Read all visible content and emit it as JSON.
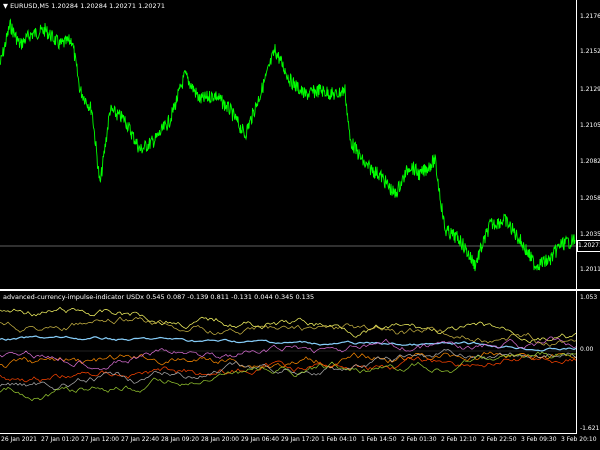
{
  "main_header": {
    "symbol": "EURUSD,M5",
    "ohlc": "1.20284 1.20284 1.20271 1.20271"
  },
  "current_price": "1.20271",
  "price_axis": [
    "1.21760",
    "1.21525",
    "1.21290",
    "1.21055",
    "1.20820",
    "1.20585",
    "1.20350",
    "1.20115"
  ],
  "indicator_header": {
    "name": "advanced-currency-impulse-indicator",
    "values": "USDx 0.545 0.087 -0.139 0.811 -0.131 0.044 0.345 0.135"
  },
  "indicator_axis": [
    "1.053",
    "0.00",
    "-1.621"
  ],
  "time_axis": [
    "26 Jan 2021",
    "27 Jan 01:20",
    "27 Jan 12:00",
    "27 Jan 22:40",
    "28 Jan 09:20",
    "28 Jan 20:00",
    "29 Jan 06:40",
    "29 Jan 17:20",
    "1 Feb 04:10",
    "1 Feb 14:50",
    "2 Feb 01:30",
    "2 Feb 12:10",
    "2 Feb 22:50",
    "3 Feb 09:30",
    "3 Feb 20:10"
  ],
  "colors": {
    "price_line": "#00ff00",
    "grid_line": "#808080",
    "series": [
      "#87cefa",
      "#ffff66",
      "#ff8c00",
      "#ff4500",
      "#b0b0b0",
      "#da70d6",
      "#cdb845",
      "#9acd32"
    ]
  }
}
